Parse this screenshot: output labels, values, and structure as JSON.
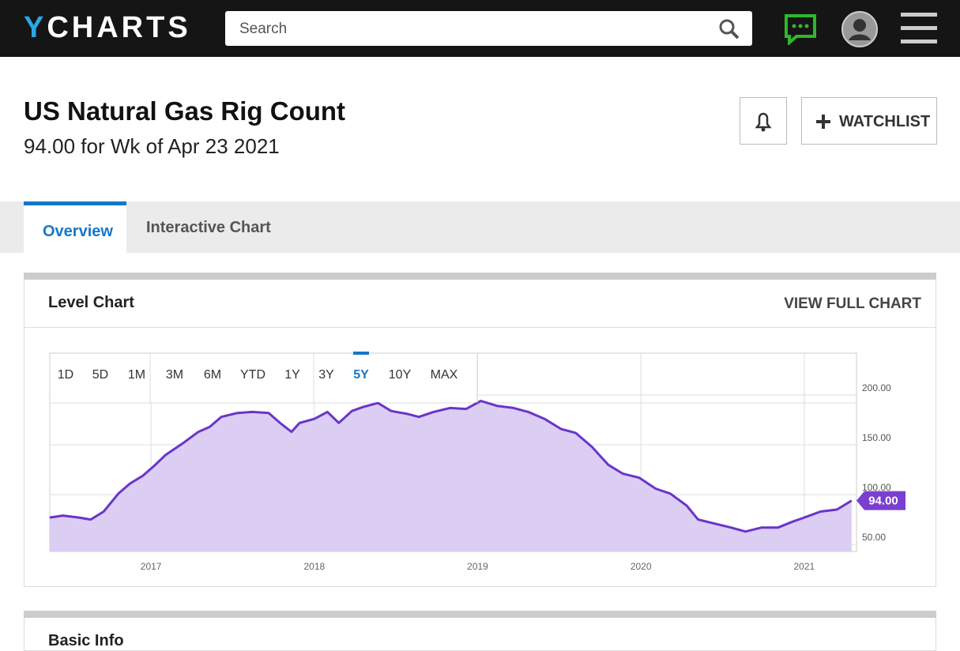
{
  "header": {
    "logo": {
      "mark": "Y",
      "rest": "CHARTS"
    },
    "search_placeholder": "Search"
  },
  "title": "US Natural Gas Rig Count",
  "subtitle": "94.00 for Wk of Apr 23 2021",
  "watchlist": "WATCHLIST",
  "tabs": [
    "Overview",
    "Interactive Chart"
  ],
  "active_tab": 0,
  "chart_data": {
    "type": "line",
    "title": "Level Chart",
    "link": "VIEW FULL CHART",
    "ranges": [
      "1D",
      "5D",
      "1M",
      "3M",
      "6M",
      "YTD",
      "1Y",
      "3Y",
      "5Y",
      "10Y",
      "MAX"
    ],
    "active_range": 8,
    "color": "#6a35c9",
    "fill": "#dccdf3",
    "x": [
      2016.38,
      2016.46,
      2016.56,
      2016.63,
      2016.71,
      2016.8,
      2016.87,
      2016.95,
      2017.02,
      2017.09,
      2017.19,
      2017.29,
      2017.36,
      2017.43,
      2017.53,
      2017.62,
      2017.72,
      2017.79,
      2017.86,
      2017.91,
      2018.0,
      2018.08,
      2018.15,
      2018.23,
      2018.3,
      2018.39,
      2018.47,
      2018.57,
      2018.64,
      2018.73,
      2018.83,
      2018.93,
      2019.02,
      2019.12,
      2019.22,
      2019.31,
      2019.41,
      2019.51,
      2019.6,
      2019.7,
      2019.8,
      2019.89,
      2019.99,
      2020.09,
      2020.18,
      2020.28,
      2020.35,
      2020.45,
      2020.55,
      2020.64,
      2020.74,
      2020.84,
      2020.93,
      2021.0,
      2021.1,
      2021.2,
      2021.29
    ],
    "values": [
      77,
      79,
      77,
      75,
      83,
      101,
      111,
      119,
      129,
      140,
      151,
      163,
      168,
      178,
      182,
      183,
      182,
      172,
      163,
      172,
      176,
      183,
      172,
      184,
      188,
      192,
      184,
      181,
      178,
      183,
      187,
      186,
      194,
      189,
      187,
      183,
      176,
      166,
      162,
      148,
      130,
      121,
      117,
      106,
      101,
      89,
      75,
      71,
      67,
      63,
      67,
      67,
      73,
      77,
      83,
      85,
      94
    ],
    "last_label": "94.00",
    "xlim": [
      2016.38,
      2021.32
    ],
    "xticks": [
      2017,
      2018,
      2019,
      2020,
      2021
    ],
    "ylim": [
      43,
      242
    ],
    "yticks": [
      {
        "value": 50,
        "label": "50.00"
      },
      {
        "value": 100,
        "label": "100.00"
      },
      {
        "value": 150,
        "label": "150.00"
      },
      {
        "value": 200,
        "label": "200.00"
      }
    ],
    "grid": true
  },
  "basic_info": "Basic Info"
}
